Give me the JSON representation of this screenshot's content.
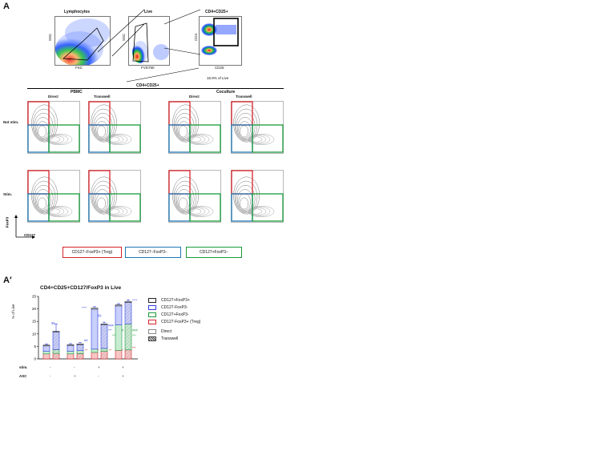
{
  "panel_a": {
    "label": "A",
    "gating": {
      "plot1_title": "Lymphocytes",
      "plot1_xlabel": "FSC",
      "plot1_ylabel": "SSC",
      "plot2_title": "Live",
      "plot2_xlabel": "FVD780",
      "plot2_ylabel": "SSC",
      "plot3_title": "CD4+CD25+",
      "plot3_xlabel": "CD25",
      "plot3_ylabel": "CD4",
      "plot3_note": "16.9% of Live"
    },
    "section_title": "CD4+CD25+",
    "group_left": "PBMC",
    "group_right": "Coculture",
    "col_direct": "Direct",
    "col_transwell": "Transwell",
    "row_not_stim": "Not stim.",
    "row_stim": "Stim.",
    "axis_y": "FoxP3",
    "axis_x": "CD127",
    "legend": [
      "CD127−FoxP3+ (Treg)",
      "CD127−FoxP3−",
      "CD127+FoxP3−"
    ],
    "colors": {
      "treg": "#d8232a",
      "neg": "#1f77b4",
      "plus": "#1a9a3c"
    }
  },
  "panel_a2": {
    "label": "A′",
    "chart_data": {
      "type": "bar",
      "title": "CD4+CD25+CD127/FoxP3 in Live",
      "ylabel": "% of Live",
      "ylim": [
        0,
        25
      ],
      "yticks": [
        "0",
        "5",
        "10",
        "15",
        "20",
        "25"
      ],
      "groups": [
        {
          "stim": "-",
          "asc": "-"
        },
        {
          "stim": "-",
          "asc": "+"
        },
        {
          "stim": "+",
          "asc": "-"
        },
        {
          "stim": "+",
          "asc": "+"
        }
      ],
      "bars_per_group": [
        "Direct",
        "Transwell"
      ],
      "series": [
        {
          "name": "CD127−FoxP3+ (Treg)",
          "values": [
            2.0,
            2.2,
            2.0,
            2.1,
            2.6,
            3.0,
            3.4,
            3.6
          ]
        },
        {
          "name": "CD127+FoxP3-",
          "values": [
            1.0,
            1.5,
            1.1,
            1.2,
            1.3,
            1.2,
            10.2,
            10.4
          ]
        },
        {
          "name": "CD127-FoxP3-",
          "values": [
            2.2,
            7.1,
            2.3,
            2.4,
            16.0,
            9.5,
            7.6,
            8.6
          ]
        },
        {
          "name": "CD127+FoxP3+",
          "values": [
            0.3,
            0.2,
            0.3,
            0.3,
            0.4,
            0.3,
            0.4,
            0.4
          ]
        }
      ],
      "errors": [
        0.5,
        3.0,
        0.4,
        0.5,
        0.6,
        0.7,
        0.5,
        0.6
      ],
      "row_labels": [
        "stim.",
        "ASC"
      ],
      "legend": [
        "CD127+FoxP3+",
        "CD127-FoxP3-",
        "CD127+FoxP3-",
        "CD127-FoxP3+ (Treg)",
        "Direct",
        "Transwell"
      ],
      "annotations": [
        "§§",
        "##",
        "****",
        "§§",
        "###",
        "***",
        "****",
        "#",
        "***",
        "###",
        "***",
        "**",
        "*",
        "**",
        "*",
        "***"
      ]
    }
  }
}
